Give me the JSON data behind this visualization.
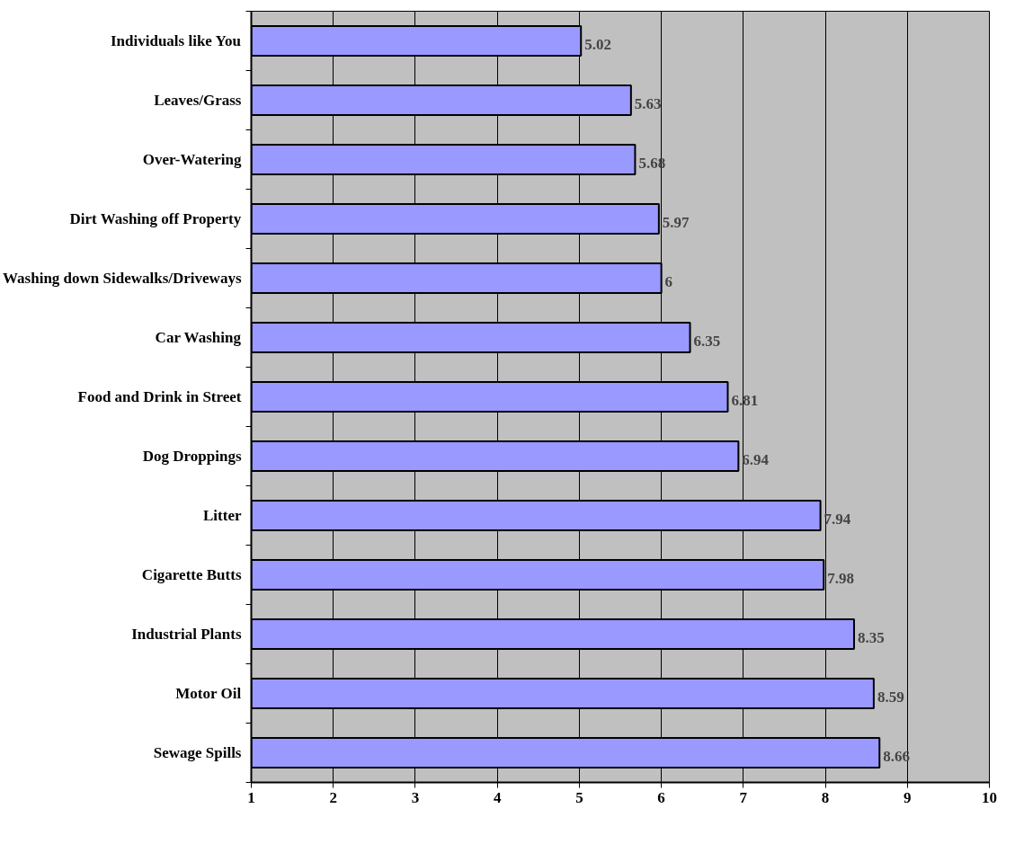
{
  "chart_data": {
    "type": "bar",
    "orientation": "horizontal",
    "categories": [
      "Individuals like You",
      "Leaves/Grass",
      "Over-Watering",
      "Dirt Washing off Property",
      "Washing down Sidewalks/Driveways",
      "Car Washing",
      "Food and Drink in Street",
      "Dog Droppings",
      "Litter",
      "Cigarette Butts",
      "Industrial Plants",
      "Motor Oil",
      "Sewage Spills"
    ],
    "values": [
      5.02,
      5.63,
      5.68,
      5.97,
      6,
      6.35,
      6.81,
      6.94,
      7.94,
      7.98,
      8.35,
      8.59,
      8.66
    ],
    "color": "#9999ff",
    "xlim": [
      1,
      10
    ],
    "xticks": [
      1,
      2,
      3,
      4,
      5,
      6,
      7,
      8,
      9,
      10
    ],
    "grid": "x",
    "data_labels": true
  }
}
